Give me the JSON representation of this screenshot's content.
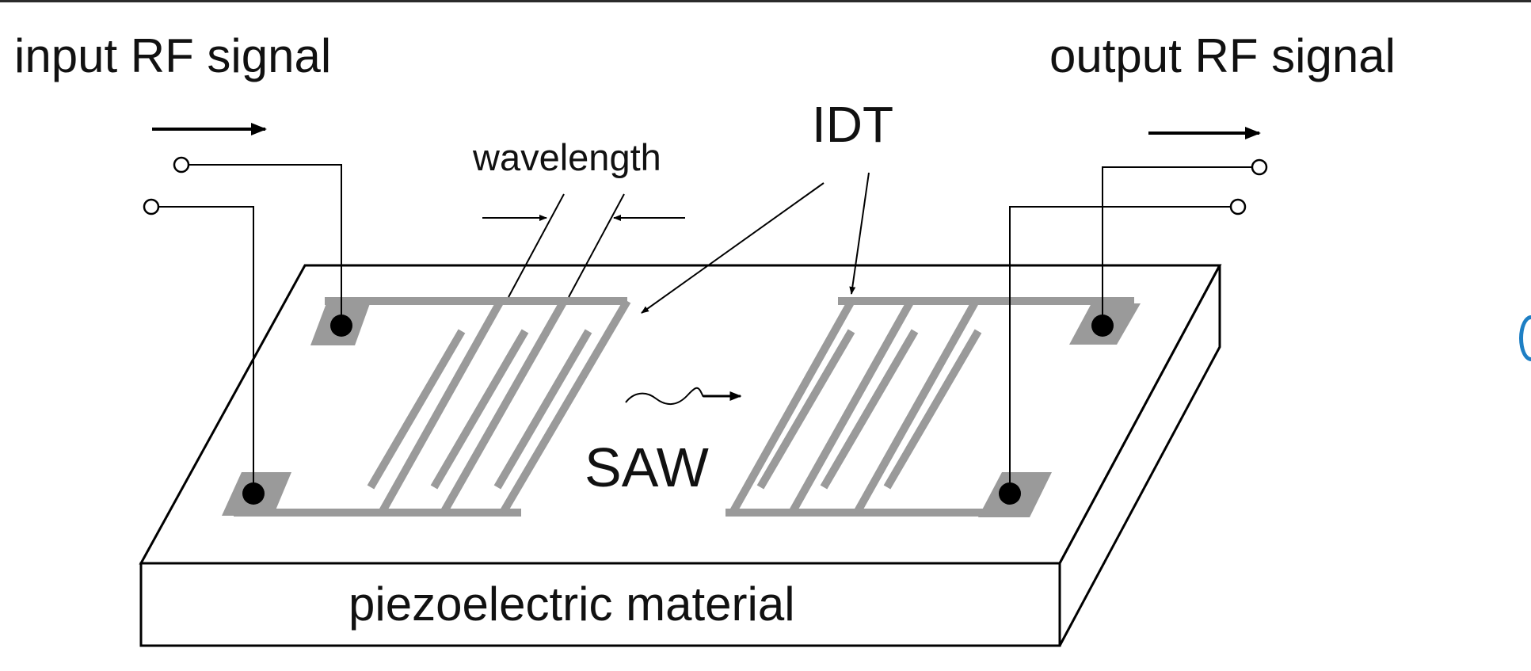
{
  "labels": {
    "input": "input RF signal",
    "output": "output RF signal",
    "idt": "IDT",
    "wavelength": "wavelength",
    "saw": "SAW",
    "substrate": "piezoelectric material"
  },
  "colors": {
    "line": "#000000",
    "electrode": "#9a9a9a",
    "background": "#ffffff",
    "edge_accent": "#1e7fc4"
  }
}
